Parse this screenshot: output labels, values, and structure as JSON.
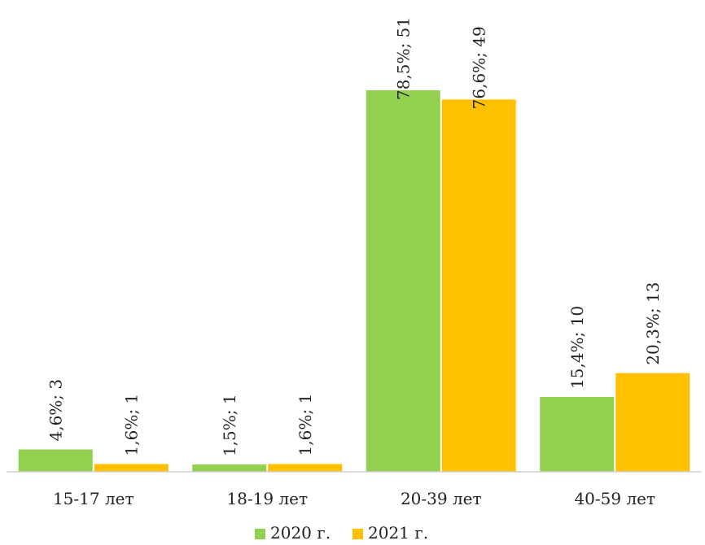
{
  "chart_data": {
    "type": "bar",
    "categories": [
      "15-17 лет",
      "18-19 лет",
      "20-39 лет",
      "40-59 лет"
    ],
    "series": [
      {
        "name": "2020 г.",
        "color": "#92D050",
        "values": [
          4.6,
          1.5,
          78.5,
          15.4
        ],
        "labels": [
          "4,6%; 3",
          "1,5%; 1",
          "78,5%; 51",
          "15,4%; 10"
        ]
      },
      {
        "name": "2021 г.",
        "color": "#FFC000",
        "values": [
          1.6,
          1.6,
          76.6,
          20.3
        ],
        "labels": [
          "1,6%; 1",
          "1,6%; 1",
          "76,6%; 49",
          "20,3%; 13"
        ]
      }
    ],
    "ylim": [
      0,
      78.5
    ],
    "grid": false,
    "legend_position": "bottom"
  }
}
